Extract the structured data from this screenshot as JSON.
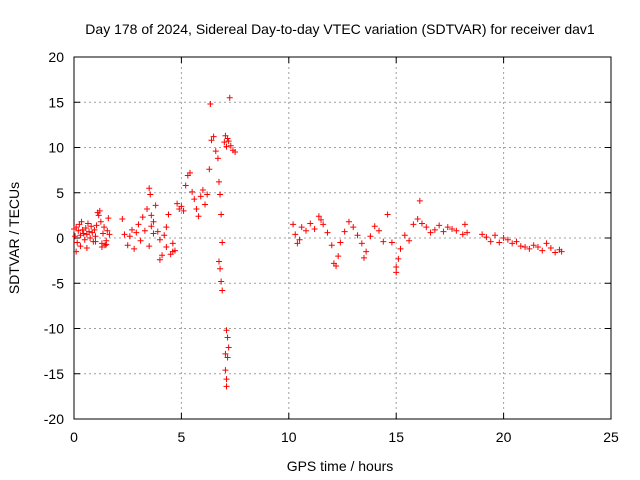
{
  "chart_data": {
    "type": "scatter",
    "title": "Day 178 of 2024, Sidereal Day-to-day VTEC variation (SDTVAR) for receiver dav1",
    "xlabel": "GPS time / hours",
    "ylabel": "SDTVAR / TECUs",
    "xlim": [
      0,
      25
    ],
    "ylim": [
      -20,
      20
    ],
    "xticks": [
      0,
      5,
      10,
      15,
      20,
      25
    ],
    "yticks": [
      -20,
      -15,
      -10,
      -5,
      0,
      5,
      10,
      15,
      20
    ],
    "grid": true,
    "marker": "+",
    "color": "#ff0000",
    "series": [
      {
        "name": "SDTVAR",
        "x": [
          0.0,
          0.05,
          0.1,
          0.15,
          0.2,
          0.25,
          0.3,
          0.35,
          0.4,
          0.45,
          0.5,
          0.55,
          0.6,
          0.65,
          0.7,
          0.75,
          0.8,
          0.85,
          0.9,
          0.95,
          1.0,
          1.05,
          1.1,
          1.15,
          1.2,
          1.25,
          1.3,
          1.35,
          1.4,
          1.45,
          1.5,
          1.55,
          1.6,
          1.65,
          0.1,
          0.3,
          0.6,
          1.0,
          1.3,
          1.5,
          2.25,
          2.35,
          2.5,
          2.6,
          2.7,
          2.8,
          2.9,
          3.0,
          3.1,
          3.2,
          3.3,
          3.4,
          3.5,
          3.55,
          3.6,
          3.7,
          3.8,
          3.9,
          4.0,
          4.1,
          4.2,
          4.3,
          4.4,
          4.5,
          4.6,
          4.7,
          3.5,
          3.6,
          3.7,
          4.0,
          4.3,
          4.6,
          4.8,
          4.9,
          5.0,
          5.1,
          5.2,
          5.3,
          5.4,
          5.5,
          5.6,
          5.7,
          5.8,
          5.9,
          6.0,
          6.1,
          6.2,
          6.3,
          6.4,
          6.5,
          6.6,
          6.7,
          6.75,
          6.8,
          6.85,
          6.9,
          7.0,
          7.05,
          7.1,
          7.15,
          7.2,
          7.3,
          7.4,
          7.5,
          6.35,
          7.25,
          6.75,
          6.8,
          6.85,
          6.9,
          7.05,
          7.1,
          7.1,
          7.15,
          7.2,
          7.15,
          7.1,
          7.05,
          10.2,
          10.3,
          10.4,
          10.5,
          10.6,
          10.8,
          11.0,
          11.2,
          11.4,
          11.5,
          11.6,
          11.8,
          12.0,
          12.1,
          12.2,
          12.3,
          12.4,
          12.6,
          12.8,
          13.0,
          13.2,
          13.4,
          13.5,
          13.6,
          13.8,
          14.0,
          14.2,
          14.4,
          14.6,
          14.8,
          15.0,
          15.2,
          15.4,
          15.6,
          15.8,
          16.0,
          16.2,
          16.4,
          16.6,
          16.8,
          17.0,
          17.2,
          17.4,
          17.6,
          17.8,
          18.1,
          18.2,
          18.3,
          15.0,
          15.1,
          16.1,
          19.0,
          19.2,
          19.4,
          19.6,
          19.8,
          20.0,
          20.2,
          20.4,
          20.6,
          20.8,
          21.0,
          21.2,
          21.4,
          21.6,
          21.8,
          22.0,
          22.2,
          22.4,
          22.6,
          22.7
        ],
        "y": [
          1.0,
          0.2,
          1.2,
          -0.5,
          0.8,
          1.5,
          0.3,
          1.8,
          0.9,
          0.5,
          -0.2,
          1.1,
          0.4,
          1.6,
          0.7,
          0.0,
          1.3,
          0.6,
          -0.4,
          0.9,
          0.2,
          1.4,
          2.8,
          2.5,
          3.0,
          1.8,
          -0.6,
          0.5,
          1.2,
          -0.8,
          -0.3,
          0.8,
          2.2,
          0.4,
          -1.5,
          -0.9,
          -1.1,
          -0.4,
          -1.0,
          -0.7,
          2.1,
          0.4,
          -0.8,
          0.2,
          0.9,
          -1.2,
          0.6,
          1.5,
          -0.3,
          2.3,
          0.8,
          3.2,
          5.5,
          4.8,
          2.5,
          1.8,
          3.6,
          0.7,
          -2.4,
          -1.9,
          0.3,
          1.2,
          2.6,
          -1.8,
          -0.6,
          -1.4,
          -0.9,
          1.3,
          0.5,
          -0.2,
          -1.0,
          -1.5,
          3.8,
          3.2,
          3.5,
          3.0,
          5.8,
          6.9,
          7.2,
          5.1,
          4.3,
          3.2,
          2.4,
          4.6,
          5.3,
          3.7,
          4.8,
          7.6,
          10.8,
          11.2,
          9.6,
          8.8,
          6.2,
          4.8,
          2.6,
          -0.5,
          10.6,
          11.3,
          10.1,
          11.0,
          10.7,
          10.2,
          9.7,
          9.5,
          14.8,
          15.5,
          -2.6,
          -3.4,
          -4.8,
          -5.8,
          -14.6,
          -15.6,
          -16.4,
          -13.2,
          -12.1,
          -11.0,
          -10.2,
          -12.8,
          1.5,
          0.4,
          -0.6,
          -0.2,
          1.2,
          0.8,
          1.6,
          1.0,
          2.4,
          2.0,
          1.5,
          0.6,
          -0.8,
          -2.8,
          -3.1,
          -2.0,
          -0.5,
          0.7,
          1.8,
          1.2,
          0.3,
          -0.6,
          -2.2,
          -1.5,
          0.2,
          1.3,
          0.8,
          -0.4,
          2.6,
          -0.5,
          -3.8,
          -1.2,
          0.3,
          -0.3,
          1.5,
          2.1,
          1.6,
          1.2,
          0.6,
          0.9,
          1.4,
          0.7,
          1.2,
          1.0,
          0.8,
          0.4,
          1.5,
          0.6,
          -3.2,
          -2.3,
          4.1,
          0.4,
          0.1,
          -0.4,
          0.3,
          -0.5,
          0.0,
          -0.2,
          -0.6,
          -0.4,
          -0.9,
          -1.0,
          -1.2,
          -0.8,
          -1.0,
          -1.4,
          -0.6,
          -1.1,
          -1.6,
          -1.3,
          -1.5
        ]
      }
    ]
  }
}
